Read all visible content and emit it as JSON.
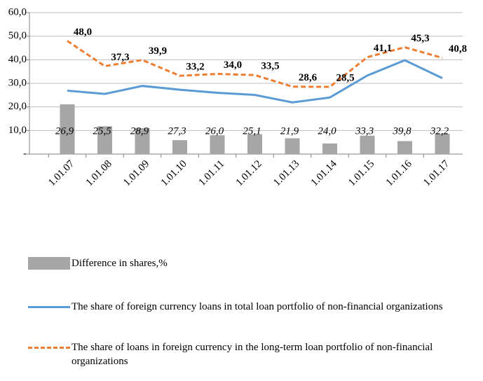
{
  "chart_data": {
    "type": "bar-line",
    "categories": [
      "1.01.07",
      "1.01.08",
      "1.01.09",
      "1.01.10",
      "1.01.11",
      "1.01.12",
      "1.01.13",
      "1.01.14",
      "1.01.15",
      "1.01.16",
      "1.01.17"
    ],
    "series": [
      {
        "name": "Difference in shares,%",
        "type": "bar",
        "color": "#a6a6a6",
        "values": [
          21.1,
          11.8,
          11.0,
          5.9,
          8.0,
          8.4,
          6.7,
          4.5,
          7.8,
          5.5,
          8.6
        ]
      },
      {
        "name": "The share of foreign currency loans in total loan portfolio of non-financial organizations",
        "type": "line",
        "color": "#5b9bd5",
        "dash": false,
        "values": [
          26.9,
          25.5,
          28.9,
          27.3,
          26.0,
          25.1,
          21.9,
          24.0,
          33.3,
          39.8,
          32.2
        ],
        "value_labels": [
          "26,9",
          "25,5",
          "28,9",
          "27,3",
          "26,0",
          "25,1",
          "21,9",
          "24,0",
          "33,3",
          "39,8",
          "32,2"
        ]
      },
      {
        "name": "The share of loans in foreign currency in the long-term loan portfolio of non-financial organizations",
        "type": "line",
        "color": "#ed7d31",
        "dash": true,
        "values": [
          48.0,
          37.3,
          39.9,
          33.2,
          34.0,
          33.5,
          28.6,
          28.5,
          41.1,
          45.3,
          40.8
        ],
        "value_labels": [
          "48,0",
          "37,3",
          "39,9",
          "33,2",
          "34,0",
          "33,5",
          "28,6",
          "28,5",
          "41,1",
          "45,3",
          "40,8"
        ]
      }
    ],
    "ylim": [
      0,
      60
    ],
    "yticks": [
      {
        "value": 0,
        "label": "-"
      },
      {
        "value": 10,
        "label": "10,0"
      },
      {
        "value": 20,
        "label": "20,0"
      },
      {
        "value": 30,
        "label": "30,0"
      },
      {
        "value": 40,
        "label": "40,0"
      },
      {
        "value": 50,
        "label": "50,0"
      },
      {
        "value": 60,
        "label": "60,0"
      }
    ],
    "grid": true
  }
}
